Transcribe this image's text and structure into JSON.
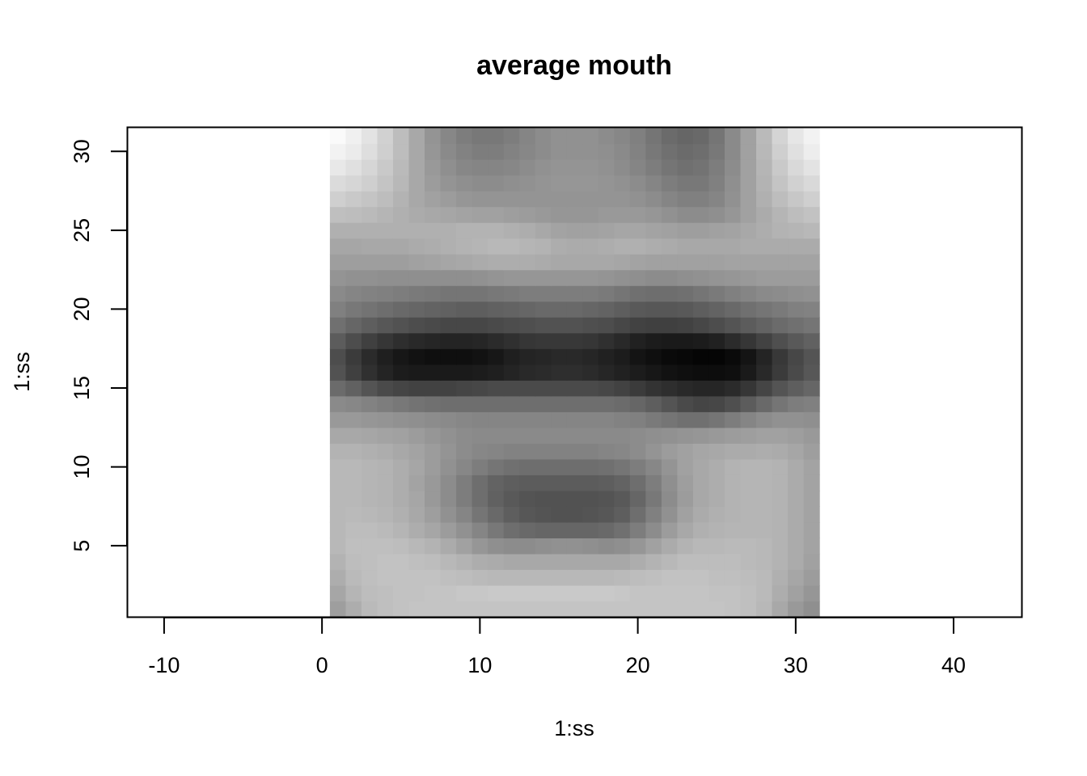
{
  "chart_data": {
    "type": "heatmap",
    "title": "average mouth",
    "xlabel": "1:ss",
    "ylabel": "1:ss",
    "xlim": [
      -12.3,
      44.3
    ],
    "ylim": [
      0.5,
      31.5
    ],
    "x_ticks": [
      "-10",
      "0",
      "10",
      "20",
      "30",
      "40"
    ],
    "x_tick_values": [
      -10,
      0,
      10,
      20,
      30,
      40
    ],
    "y_ticks": [
      "5",
      "10",
      "15",
      "20",
      "25",
      "30"
    ],
    "y_tick_values": [
      5,
      10,
      15,
      20,
      25,
      30
    ],
    "colormap": "grayscale (0 = black, 1 = white)",
    "grid": false,
    "legend": "none",
    "x": [
      1,
      2,
      3,
      4,
      5,
      6,
      7,
      8,
      9,
      10,
      11,
      12,
      13,
      14,
      15,
      16,
      17,
      18,
      19,
      20,
      21,
      22,
      23,
      24,
      25,
      26,
      27,
      28,
      29,
      30,
      31
    ],
    "y": [
      1,
      2,
      3,
      4,
      5,
      6,
      7,
      8,
      9,
      10,
      11,
      12,
      13,
      14,
      15,
      16,
      17,
      18,
      19,
      20,
      21,
      22,
      23,
      24,
      25,
      26,
      27,
      28,
      29,
      30,
      31
    ],
    "rows": [
      [
        0.62,
        0.68,
        0.73,
        0.75,
        0.76,
        0.77,
        0.77,
        0.77,
        0.77,
        0.77,
        0.77,
        0.77,
        0.77,
        0.77,
        0.77,
        0.77,
        0.77,
        0.77,
        0.77,
        0.77,
        0.77,
        0.77,
        0.77,
        0.77,
        0.77,
        0.76,
        0.75,
        0.72,
        0.66,
        0.6,
        0.56
      ],
      [
        0.65,
        0.71,
        0.74,
        0.75,
        0.76,
        0.76,
        0.77,
        0.77,
        0.78,
        0.78,
        0.79,
        0.79,
        0.79,
        0.79,
        0.79,
        0.79,
        0.79,
        0.79,
        0.78,
        0.77,
        0.77,
        0.77,
        0.77,
        0.77,
        0.76,
        0.76,
        0.75,
        0.73,
        0.68,
        0.63,
        0.59
      ],
      [
        0.68,
        0.73,
        0.75,
        0.76,
        0.76,
        0.76,
        0.76,
        0.75,
        0.74,
        0.73,
        0.72,
        0.72,
        0.72,
        0.72,
        0.72,
        0.72,
        0.72,
        0.72,
        0.73,
        0.74,
        0.75,
        0.76,
        0.76,
        0.76,
        0.75,
        0.75,
        0.74,
        0.73,
        0.69,
        0.65,
        0.61
      ],
      [
        0.7,
        0.74,
        0.75,
        0.76,
        0.76,
        0.75,
        0.74,
        0.72,
        0.7,
        0.68,
        0.67,
        0.66,
        0.66,
        0.66,
        0.66,
        0.66,
        0.66,
        0.66,
        0.66,
        0.68,
        0.7,
        0.72,
        0.74,
        0.74,
        0.74,
        0.74,
        0.73,
        0.72,
        0.7,
        0.67,
        0.63
      ],
      [
        0.72,
        0.75,
        0.75,
        0.75,
        0.74,
        0.72,
        0.7,
        0.67,
        0.63,
        0.59,
        0.56,
        0.55,
        0.55,
        0.56,
        0.57,
        0.57,
        0.56,
        0.55,
        0.56,
        0.59,
        0.63,
        0.67,
        0.7,
        0.72,
        0.72,
        0.73,
        0.73,
        0.72,
        0.7,
        0.67,
        0.64
      ],
      [
        0.72,
        0.74,
        0.74,
        0.73,
        0.71,
        0.68,
        0.65,
        0.61,
        0.57,
        0.52,
        0.47,
        0.43,
        0.41,
        0.4,
        0.4,
        0.4,
        0.4,
        0.41,
        0.44,
        0.49,
        0.55,
        0.61,
        0.66,
        0.69,
        0.7,
        0.71,
        0.71,
        0.71,
        0.7,
        0.67,
        0.64
      ],
      [
        0.72,
        0.73,
        0.72,
        0.71,
        0.69,
        0.66,
        0.62,
        0.57,
        0.52,
        0.46,
        0.41,
        0.37,
        0.34,
        0.33,
        0.32,
        0.32,
        0.33,
        0.34,
        0.37,
        0.43,
        0.5,
        0.57,
        0.63,
        0.67,
        0.69,
        0.7,
        0.71,
        0.71,
        0.7,
        0.67,
        0.64
      ],
      [
        0.72,
        0.72,
        0.71,
        0.7,
        0.68,
        0.65,
        0.6,
        0.55,
        0.49,
        0.43,
        0.38,
        0.35,
        0.33,
        0.32,
        0.32,
        0.32,
        0.32,
        0.33,
        0.35,
        0.4,
        0.47,
        0.55,
        0.61,
        0.66,
        0.68,
        0.7,
        0.71,
        0.71,
        0.7,
        0.67,
        0.64
      ],
      [
        0.72,
        0.72,
        0.71,
        0.7,
        0.68,
        0.64,
        0.6,
        0.55,
        0.49,
        0.43,
        0.39,
        0.37,
        0.36,
        0.36,
        0.36,
        0.36,
        0.36,
        0.37,
        0.39,
        0.43,
        0.49,
        0.56,
        0.62,
        0.66,
        0.68,
        0.7,
        0.71,
        0.71,
        0.7,
        0.67,
        0.64
      ],
      [
        0.72,
        0.72,
        0.71,
        0.7,
        0.68,
        0.65,
        0.61,
        0.57,
        0.53,
        0.49,
        0.46,
        0.44,
        0.43,
        0.43,
        0.43,
        0.43,
        0.43,
        0.44,
        0.46,
        0.49,
        0.53,
        0.58,
        0.63,
        0.66,
        0.68,
        0.7,
        0.71,
        0.71,
        0.7,
        0.67,
        0.64
      ],
      [
        0.7,
        0.7,
        0.69,
        0.68,
        0.66,
        0.64,
        0.61,
        0.58,
        0.55,
        0.53,
        0.52,
        0.51,
        0.51,
        0.51,
        0.51,
        0.51,
        0.51,
        0.52,
        0.53,
        0.55,
        0.58,
        0.61,
        0.63,
        0.65,
        0.66,
        0.67,
        0.67,
        0.68,
        0.67,
        0.65,
        0.62
      ],
      [
        0.66,
        0.66,
        0.65,
        0.64,
        0.63,
        0.61,
        0.59,
        0.57,
        0.55,
        0.54,
        0.54,
        0.54,
        0.54,
        0.54,
        0.54,
        0.54,
        0.54,
        0.54,
        0.54,
        0.55,
        0.56,
        0.57,
        0.58,
        0.59,
        0.6,
        0.61,
        0.62,
        0.63,
        0.63,
        0.62,
        0.6
      ],
      [
        0.6,
        0.6,
        0.59,
        0.58,
        0.57,
        0.56,
        0.55,
        0.54,
        0.53,
        0.52,
        0.52,
        0.52,
        0.52,
        0.52,
        0.52,
        0.52,
        0.52,
        0.52,
        0.51,
        0.5,
        0.48,
        0.46,
        0.44,
        0.44,
        0.46,
        0.49,
        0.52,
        0.55,
        0.57,
        0.57,
        0.56
      ],
      [
        0.54,
        0.53,
        0.51,
        0.49,
        0.47,
        0.45,
        0.44,
        0.43,
        0.43,
        0.43,
        0.43,
        0.43,
        0.43,
        0.43,
        0.43,
        0.43,
        0.43,
        0.43,
        0.42,
        0.4,
        0.37,
        0.33,
        0.29,
        0.27,
        0.28,
        0.31,
        0.36,
        0.41,
        0.46,
        0.49,
        0.5
      ],
      [
        0.42,
        0.38,
        0.33,
        0.29,
        0.27,
        0.26,
        0.26,
        0.26,
        0.27,
        0.28,
        0.29,
        0.29,
        0.29,
        0.29,
        0.29,
        0.29,
        0.29,
        0.28,
        0.26,
        0.23,
        0.2,
        0.18,
        0.16,
        0.15,
        0.15,
        0.17,
        0.21,
        0.27,
        0.33,
        0.37,
        0.4
      ],
      [
        0.32,
        0.25,
        0.19,
        0.14,
        0.11,
        0.1,
        0.1,
        0.1,
        0.1,
        0.11,
        0.12,
        0.14,
        0.16,
        0.17,
        0.18,
        0.18,
        0.17,
        0.15,
        0.13,
        0.11,
        0.09,
        0.07,
        0.06,
        0.05,
        0.05,
        0.06,
        0.1,
        0.16,
        0.23,
        0.29,
        0.34
      ],
      [
        0.3,
        0.23,
        0.17,
        0.12,
        0.09,
        0.07,
        0.06,
        0.06,
        0.06,
        0.07,
        0.09,
        0.12,
        0.14,
        0.15,
        0.16,
        0.16,
        0.15,
        0.13,
        0.11,
        0.08,
        0.06,
        0.04,
        0.03,
        0.02,
        0.02,
        0.04,
        0.08,
        0.14,
        0.22,
        0.28,
        0.33
      ],
      [
        0.36,
        0.3,
        0.25,
        0.21,
        0.18,
        0.16,
        0.15,
        0.14,
        0.14,
        0.15,
        0.17,
        0.19,
        0.21,
        0.22,
        0.22,
        0.22,
        0.21,
        0.19,
        0.16,
        0.13,
        0.11,
        0.1,
        0.1,
        0.11,
        0.13,
        0.17,
        0.21,
        0.26,
        0.31,
        0.35,
        0.38
      ],
      [
        0.44,
        0.4,
        0.37,
        0.34,
        0.32,
        0.3,
        0.29,
        0.28,
        0.28,
        0.28,
        0.29,
        0.3,
        0.31,
        0.32,
        0.32,
        0.32,
        0.31,
        0.3,
        0.28,
        0.26,
        0.25,
        0.25,
        0.26,
        0.28,
        0.3,
        0.33,
        0.36,
        0.39,
        0.42,
        0.44,
        0.46
      ],
      [
        0.5,
        0.47,
        0.45,
        0.43,
        0.41,
        0.4,
        0.39,
        0.38,
        0.37,
        0.37,
        0.38,
        0.39,
        0.4,
        0.41,
        0.41,
        0.41,
        0.4,
        0.39,
        0.37,
        0.35,
        0.34,
        0.34,
        0.35,
        0.37,
        0.39,
        0.41,
        0.44,
        0.46,
        0.48,
        0.5,
        0.51
      ],
      [
        0.54,
        0.52,
        0.51,
        0.5,
        0.49,
        0.48,
        0.47,
        0.46,
        0.46,
        0.46,
        0.47,
        0.48,
        0.49,
        0.49,
        0.49,
        0.49,
        0.49,
        0.48,
        0.46,
        0.44,
        0.43,
        0.43,
        0.44,
        0.46,
        0.48,
        0.5,
        0.52,
        0.54,
        0.55,
        0.56,
        0.57
      ],
      [
        0.58,
        0.57,
        0.57,
        0.56,
        0.56,
        0.56,
        0.56,
        0.56,
        0.56,
        0.57,
        0.58,
        0.59,
        0.59,
        0.59,
        0.59,
        0.59,
        0.59,
        0.58,
        0.57,
        0.56,
        0.55,
        0.55,
        0.56,
        0.57,
        0.58,
        0.59,
        0.6,
        0.61,
        0.61,
        0.61,
        0.61
      ],
      [
        0.62,
        0.62,
        0.62,
        0.62,
        0.62,
        0.63,
        0.64,
        0.65,
        0.66,
        0.67,
        0.68,
        0.68,
        0.68,
        0.67,
        0.66,
        0.66,
        0.66,
        0.66,
        0.65,
        0.64,
        0.63,
        0.63,
        0.63,
        0.63,
        0.63,
        0.64,
        0.64,
        0.64,
        0.64,
        0.64,
        0.64
      ],
      [
        0.65,
        0.65,
        0.66,
        0.66,
        0.66,
        0.67,
        0.68,
        0.69,
        0.7,
        0.71,
        0.72,
        0.72,
        0.71,
        0.7,
        0.68,
        0.67,
        0.67,
        0.68,
        0.69,
        0.69,
        0.68,
        0.67,
        0.66,
        0.66,
        0.66,
        0.66,
        0.67,
        0.67,
        0.67,
        0.67,
        0.67
      ],
      [
        0.69,
        0.69,
        0.69,
        0.69,
        0.69,
        0.69,
        0.69,
        0.69,
        0.7,
        0.7,
        0.7,
        0.69,
        0.68,
        0.66,
        0.64,
        0.63,
        0.63,
        0.64,
        0.65,
        0.65,
        0.64,
        0.63,
        0.62,
        0.62,
        0.63,
        0.64,
        0.66,
        0.68,
        0.7,
        0.71,
        0.72
      ],
      [
        0.75,
        0.74,
        0.73,
        0.71,
        0.69,
        0.67,
        0.66,
        0.65,
        0.64,
        0.63,
        0.63,
        0.62,
        0.61,
        0.6,
        0.59,
        0.59,
        0.59,
        0.6,
        0.6,
        0.6,
        0.59,
        0.57,
        0.55,
        0.55,
        0.56,
        0.59,
        0.63,
        0.67,
        0.71,
        0.74,
        0.76
      ],
      [
        0.81,
        0.79,
        0.77,
        0.74,
        0.7,
        0.66,
        0.63,
        0.61,
        0.59,
        0.58,
        0.58,
        0.58,
        0.58,
        0.58,
        0.58,
        0.58,
        0.58,
        0.58,
        0.58,
        0.57,
        0.55,
        0.52,
        0.5,
        0.5,
        0.52,
        0.57,
        0.63,
        0.69,
        0.74,
        0.78,
        0.81
      ],
      [
        0.86,
        0.84,
        0.81,
        0.77,
        0.72,
        0.66,
        0.61,
        0.58,
        0.56,
        0.55,
        0.55,
        0.56,
        0.57,
        0.58,
        0.59,
        0.59,
        0.59,
        0.58,
        0.57,
        0.55,
        0.52,
        0.49,
        0.47,
        0.47,
        0.5,
        0.56,
        0.63,
        0.7,
        0.77,
        0.82,
        0.85
      ],
      [
        0.91,
        0.88,
        0.84,
        0.79,
        0.73,
        0.66,
        0.6,
        0.56,
        0.53,
        0.52,
        0.52,
        0.53,
        0.55,
        0.57,
        0.58,
        0.58,
        0.58,
        0.57,
        0.55,
        0.52,
        0.49,
        0.46,
        0.44,
        0.45,
        0.49,
        0.55,
        0.63,
        0.71,
        0.79,
        0.85,
        0.89
      ],
      [
        0.95,
        0.92,
        0.87,
        0.81,
        0.74,
        0.66,
        0.59,
        0.54,
        0.51,
        0.49,
        0.49,
        0.51,
        0.53,
        0.55,
        0.57,
        0.57,
        0.57,
        0.56,
        0.54,
        0.51,
        0.47,
        0.44,
        0.42,
        0.43,
        0.47,
        0.54,
        0.63,
        0.72,
        0.81,
        0.88,
        0.93
      ],
      [
        0.98,
        0.94,
        0.89,
        0.82,
        0.74,
        0.66,
        0.58,
        0.53,
        0.49,
        0.47,
        0.47,
        0.49,
        0.52,
        0.55,
        0.57,
        0.57,
        0.57,
        0.55,
        0.53,
        0.5,
        0.46,
        0.42,
        0.4,
        0.41,
        0.46,
        0.54,
        0.63,
        0.73,
        0.83,
        0.9,
        0.95
      ]
    ]
  }
}
